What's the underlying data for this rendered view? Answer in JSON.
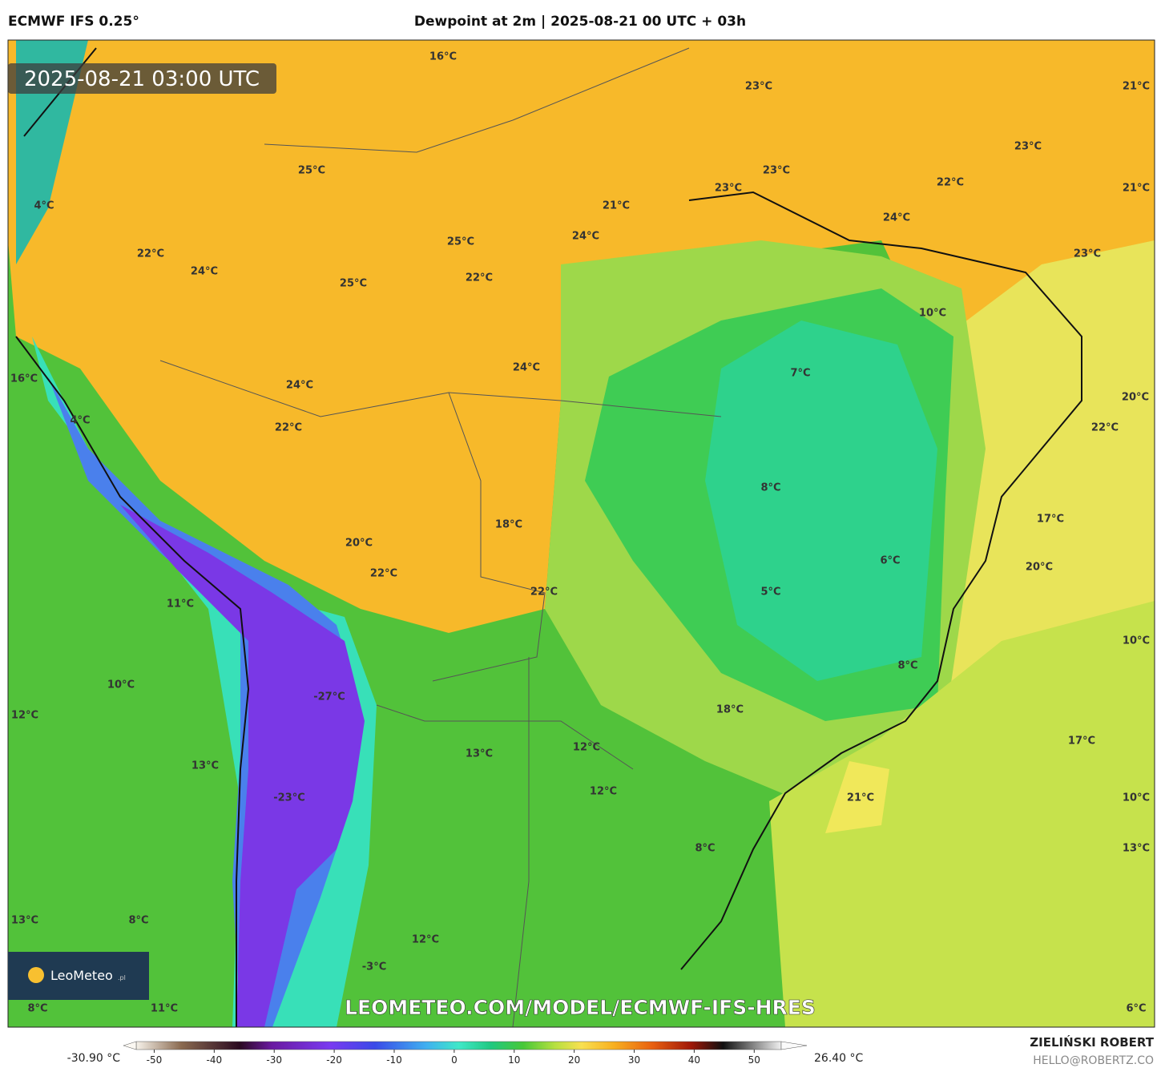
{
  "header": {
    "model": "ECMWF IFS 0.25°",
    "title": "Dewpoint at 2m | 2025-08-21 00 UTC + 03h"
  },
  "timestamp": "2025-08-21 03:00 UTC",
  "map_labels": [
    "16°C",
    "23°C",
    "21°C",
    "25°C",
    "23°C",
    "23°C",
    "22°C",
    "21°C",
    "4°C",
    "21°C",
    "23°C",
    "24°C",
    "24°C",
    "25°C",
    "22°C",
    "24°C",
    "23°C",
    "22°C",
    "25°C",
    "10°C",
    "24°C",
    "7°C",
    "16°C",
    "24°C",
    "20°C",
    "4°C",
    "22°C",
    "22°C",
    "8°C",
    "18°C",
    "17°C",
    "20°C",
    "6°C",
    "22°C",
    "20°C",
    "5°C",
    "22°C",
    "11°C",
    "10°C",
    "8°C",
    "10°C",
    "-27°C",
    "18°C",
    "12°C",
    "17°C",
    "13°C",
    "12°C",
    "13°C",
    "12°C",
    "-23°C",
    "21°C",
    "10°C",
    "8°C",
    "13°C",
    "13°C",
    "8°C",
    "12°C",
    "-3°C",
    "11°C",
    "8°C",
    "6°C"
  ],
  "watermark": "LEOMETEO.COM/MODEL/ECMWF-IFS-HRES",
  "logo": {
    "name": "LeoMeteo",
    "suffix": ".pl"
  },
  "colorbar": {
    "range": [
      -53,
      54.5
    ],
    "ticks": [
      -50,
      -40,
      -30,
      -20,
      -10,
      0,
      10,
      20,
      30,
      40,
      50
    ],
    "min_label": "-30.90 °C",
    "max_label": "26.40 °C"
  },
  "footer": {
    "author": "ZIELIŃSKI ROBERT",
    "email": "HELLO@ROBERTZ.CO"
  }
}
